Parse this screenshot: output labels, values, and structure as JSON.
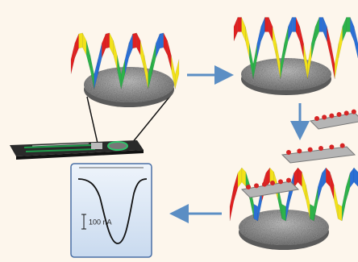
{
  "scale_bar": {
    "label": "100 nA"
  }
}
